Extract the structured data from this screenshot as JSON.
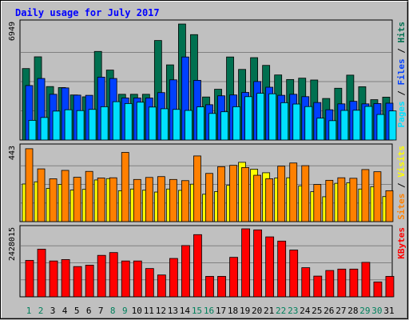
{
  "chart_data": {
    "type": "bar",
    "title": "Daily usage for July 2017",
    "categories": [
      "1",
      "2",
      "3",
      "4",
      "5",
      "6",
      "7",
      "8",
      "9",
      "10",
      "11",
      "12",
      "13",
      "14",
      "15",
      "16",
      "17",
      "18",
      "19",
      "20",
      "21",
      "22",
      "23",
      "24",
      "25",
      "26",
      "27",
      "28",
      "29",
      "30",
      "31"
    ],
    "weekend_days": [
      "1",
      "2",
      "8",
      "9",
      "15",
      "16",
      "22",
      "23",
      "29",
      "30"
    ],
    "colors": {
      "background": "#c0c0c0",
      "title": "#0000ff",
      "hits": "#007050",
      "files": "#0040ff",
      "pages": "#00e0ff",
      "visits": "#ffff00",
      "sites": "#ff8000",
      "kbytes": "#ff0000",
      "weekday_label": "#000000",
      "weekend_label": "#00805c"
    },
    "panels": [
      {
        "id": "requests",
        "ymax": 6949,
        "ymax_label": "6949",
        "legend": [
          {
            "text": "Pages",
            "color": "#00e0ff"
          },
          {
            "text": " / ",
            "color": "#000000"
          },
          {
            "text": "Files",
            "color": "#0040ff"
          },
          {
            "text": " / ",
            "color": "#000000"
          },
          {
            "text": "Hits",
            "color": "#007050"
          }
        ],
        "series": [
          {
            "name": "Hits",
            "color": "#007050",
            "values": [
              4250,
              4950,
              3180,
              3120,
              2680,
              2570,
              5270,
              4160,
              2720,
              2720,
              2720,
              5920,
              4470,
              6900,
              6270,
              2560,
              3020,
              4940,
              4200,
              4900,
              4440,
              3870,
              3600,
              3680,
              3570,
              2470,
              3080,
              3860,
              3170,
              2400,
              2550
            ]
          },
          {
            "name": "Files",
            "color": "#0040ff",
            "values": [
              3240,
              3660,
              2720,
              3100,
              2670,
              2660,
              3740,
              3660,
              2500,
              2500,
              2500,
              2820,
              3580,
              4940,
              3550,
              2100,
              2630,
              2680,
              2830,
              3480,
              3140,
              2660,
              2720,
              2580,
              2230,
              1800,
              2150,
              2300,
              2150,
              2170,
              2190
            ]
          },
          {
            "name": "Pages",
            "color": "#00e0ff",
            "values": [
              1170,
              1340,
              1720,
              1800,
              1750,
              1820,
              1980,
              2280,
              2170,
              2250,
              1960,
              1860,
              1820,
              1760,
              1970,
              1580,
              1680,
              1980,
              2580,
              2780,
              2750,
              2220,
              2140,
              1990,
              1300,
              1150,
              1760,
              1770,
              2000,
              1520,
              1730
            ]
          }
        ]
      },
      {
        "id": "visits",
        "ymax": 443,
        "ymax_label": "443",
        "legend": [
          {
            "text": "Sites",
            "color": "#ff8000"
          },
          {
            "text": " / ",
            "color": "#000000"
          },
          {
            "text": "Visits",
            "color": "#ffff00"
          }
        ],
        "series": [
          {
            "name": "Visits",
            "color": "#ffff00",
            "values": [
              224,
              237,
              198,
              222,
              188,
              192,
              248,
              256,
              184,
              194,
              187,
              176,
              194,
              186,
              223,
              163,
              179,
              216,
              353,
              312,
              291,
              260,
              261,
              213,
              178,
              148,
              228,
              231,
              194,
              208,
              149
            ]
          },
          {
            "name": "Sites",
            "color": "#ff8000",
            "values": [
              434,
              314,
              255,
              305,
              264,
              299,
              260,
              261,
              412,
              251,
              263,
              268,
              251,
              244,
              391,
              287,
              327,
              335,
              322,
              276,
              255,
              330,
              349,
              333,
              221,
              246,
              261,
              258,
              310,
              297,
              184
            ]
          }
        ]
      },
      {
        "id": "kbytes",
        "ymax": 2428015,
        "ymax_label": "2428015",
        "legend": [
          {
            "text": "KBytes",
            "color": "#ff0000"
          }
        ],
        "series": [
          {
            "name": "KBytes",
            "color": "#ff0000",
            "values": [
              1300000,
              1700000,
              1280000,
              1330000,
              1080000,
              1130000,
              1480000,
              1580000,
              1280000,
              1280000,
              1010000,
              780000,
              1370000,
              1830000,
              2220000,
              730000,
              730000,
              1410000,
              2470000,
              2390000,
              2140000,
              1990000,
              1670000,
              1040000,
              740000,
              940000,
              990000,
              990000,
              1230000,
              530000,
              730000
            ]
          }
        ]
      }
    ]
  }
}
